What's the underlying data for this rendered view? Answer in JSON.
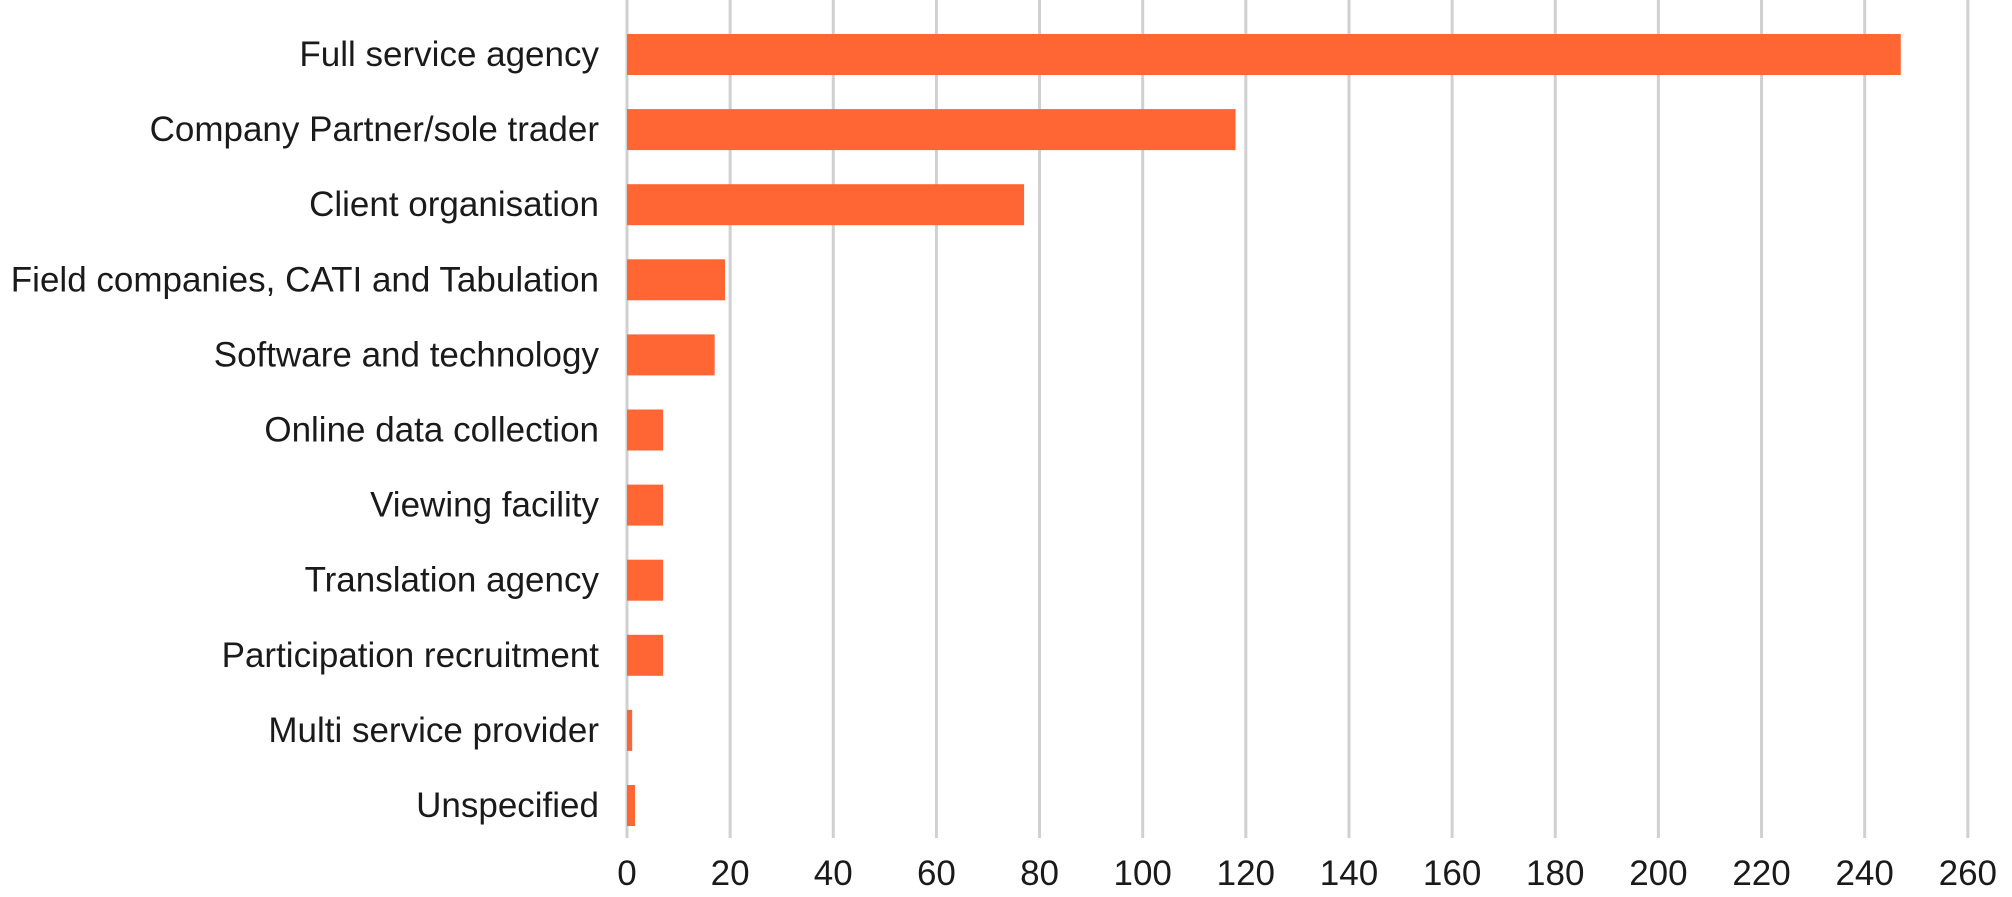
{
  "chart_data": {
    "type": "bar",
    "orientation": "horizontal",
    "categories": [
      "Full service agency",
      "Company Partner/sole trader",
      "Client organisation",
      "Field companies, CATI and Tabulation",
      "Software and technology",
      "Online data collection",
      "Viewing facility",
      "Translation agency",
      "Participation recruitment",
      "Multi service provider",
      "Unspecified"
    ],
    "values": [
      247,
      118,
      77,
      19,
      17,
      7,
      7,
      7,
      7,
      1,
      0
    ],
    "xlim": [
      0,
      260
    ],
    "xticks": [
      "0",
      "20",
      "40",
      "60",
      "80",
      "100",
      "120",
      "140",
      "160",
      "180",
      "200",
      "220",
      "240",
      "260"
    ],
    "title": "",
    "xlabel": "",
    "ylabel": "",
    "grid": true,
    "legend": "none",
    "bar_color": "#ff6633",
    "grid_color": "#d0d0d0",
    "text_color": "#1a1a1a"
  }
}
